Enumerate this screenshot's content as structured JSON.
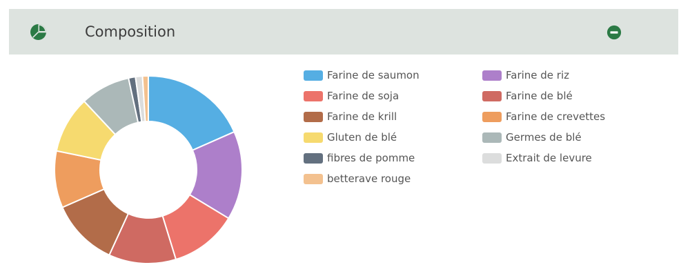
{
  "header": {
    "title": "Composition",
    "icon": "pie-chart-icon",
    "collapse_icon": "minus-circle-icon",
    "accent_color": "#2b7a45"
  },
  "chart_data": {
    "type": "pie",
    "donut": true,
    "legend_position": "right",
    "slices": [
      {
        "label": "Farine de saumon",
        "value": 18.4,
        "color": "#55aee3"
      },
      {
        "label": "Farine de riz",
        "value": 15.3,
        "color": "#ad7fca"
      },
      {
        "label": "Farine de soja",
        "value": 11.6,
        "color": "#ec736a"
      },
      {
        "label": "Farine de blé",
        "value": 11.6,
        "color": "#cf6a62"
      },
      {
        "label": "Farine de krill",
        "value": 11.6,
        "color": "#b26c49"
      },
      {
        "label": "Farine de crevettes",
        "value": 9.8,
        "color": "#ee9d5e"
      },
      {
        "label": "Gluten de blé",
        "value": 9.8,
        "color": "#f6da6f"
      },
      {
        "label": "Germes de blé",
        "value": 8.6,
        "color": "#abb8b8"
      },
      {
        "label": "fibres de pomme",
        "value": 1.2,
        "color": "#63707f"
      },
      {
        "label": "Extrait de levure",
        "value": 1.2,
        "color": "#dcdddd"
      },
      {
        "label": "betterave rouge",
        "value": 1.0,
        "color": "#f3c18f"
      }
    ]
  },
  "legend": {
    "columns": [
      [
        "Farine de saumon",
        "Farine de soja",
        "Farine de krill",
        "Gluten de blé",
        "fibres de pomme",
        "betterave rouge"
      ],
      [
        "Farine de riz",
        "Farine de blé",
        "Farine de crevettes",
        "Germes de blé",
        "Extrait de levure"
      ]
    ]
  }
}
